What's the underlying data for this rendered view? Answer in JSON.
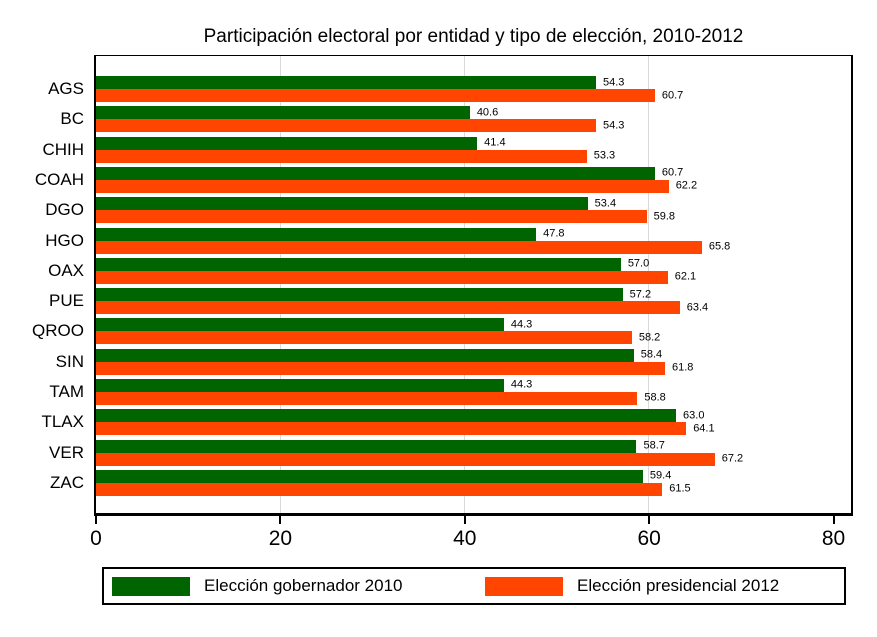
{
  "chart_data": {
    "type": "bar",
    "orientation": "horizontal",
    "title": "Participación electoral por entidad y tipo de elección, 2010-2012",
    "categories": [
      "AGS",
      "BC",
      "CHIH",
      "COAH",
      "DGO",
      "HGO",
      "OAX",
      "PUE",
      "QROO",
      "SIN",
      "TAM",
      "TLAX",
      "VER",
      "ZAC"
    ],
    "series": [
      {
        "name": "Elección gobernador 2010",
        "color": "#006400",
        "values": [
          54.3,
          40.6,
          41.4,
          60.7,
          53.4,
          47.8,
          57.0,
          57.2,
          44.3,
          58.4,
          44.3,
          63.0,
          58.7,
          59.4
        ]
      },
      {
        "name": "Elección presidencial 2012",
        "color": "#FF4500",
        "values": [
          60.7,
          54.3,
          53.3,
          62.2,
          59.8,
          65.8,
          62.1,
          63.4,
          58.2,
          61.8,
          58.8,
          64.1,
          67.2,
          61.5
        ]
      }
    ],
    "xlim": [
      0,
      82
    ],
    "xticks": [
      0,
      20,
      40,
      60,
      80
    ],
    "gridline_values": [
      20,
      40,
      60
    ],
    "grid_color": "#d9d9d9",
    "axis_color": "#000000",
    "bar_value_labels": true,
    "legend_position": "bottom"
  }
}
